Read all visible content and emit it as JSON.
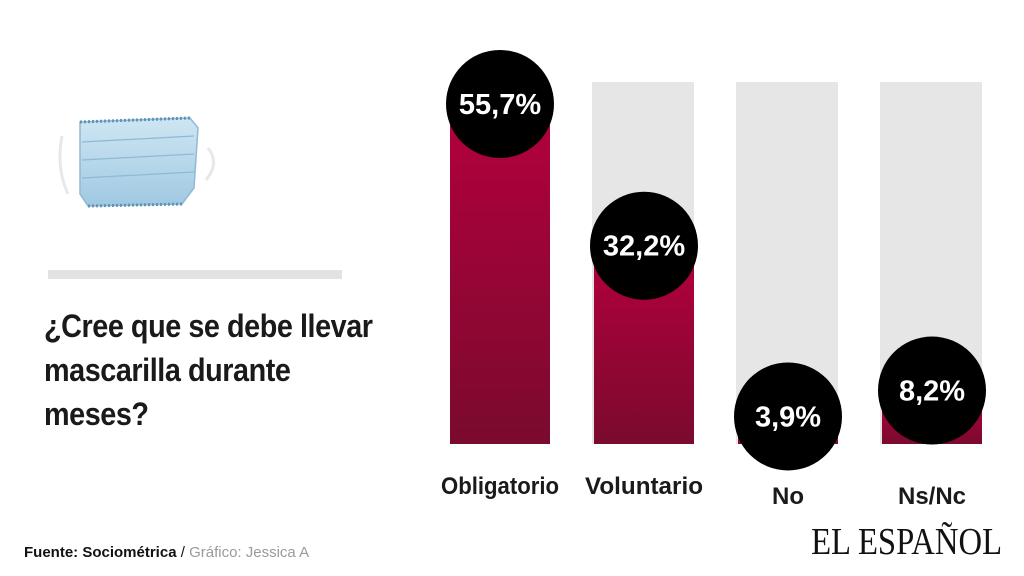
{
  "question": "¿Cree que se debe llevar mascarilla durante meses?",
  "footer": {
    "source_label": "Fuente: Sociométrica",
    "separator": " / ",
    "credit": "Gráfico: Jessica A"
  },
  "logo": "EL ESPAÑOL",
  "colors": {
    "bar_top": "#b3003c",
    "bar_bottom": "#7a0a2e",
    "track": "#e6e6e6",
    "bubble": "#000000",
    "bubble_text": "#ffffff"
  },
  "icon": "face-mask-icon",
  "chart_data": {
    "type": "bar",
    "categories": [
      "Obligatorio",
      "Voluntario",
      "No",
      "Ns/Nc"
    ],
    "values": [
      55.7,
      32.2,
      3.9,
      8.2
    ],
    "value_labels": [
      "55,7%",
      "32,2%",
      "3,9%",
      "8,2%"
    ],
    "ylim": [
      0,
      60
    ],
    "title": "",
    "xlabel": "",
    "ylabel": "",
    "grid": false
  }
}
